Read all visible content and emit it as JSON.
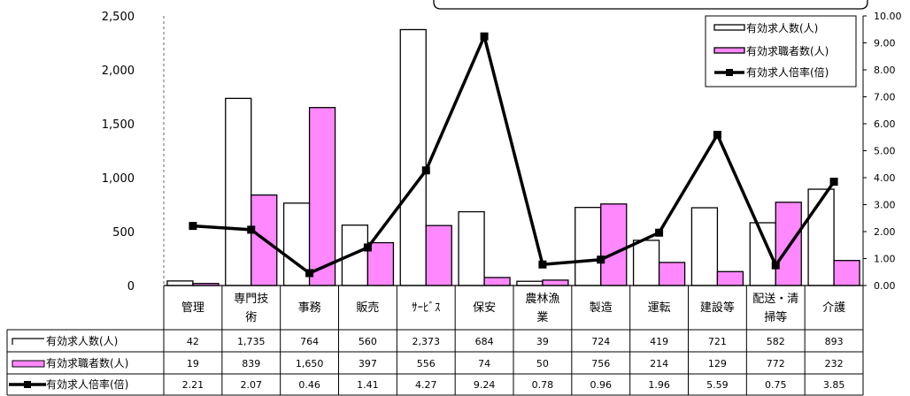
{
  "chart_data": {
    "type": "bar",
    "categories": [
      [
        "管理"
      ],
      [
        "専門技",
        "術"
      ],
      [
        "事務"
      ],
      [
        "販売"
      ],
      [
        "ｻｰﾋﾞｽ"
      ],
      [
        "保安"
      ],
      [
        "農林漁",
        "業"
      ],
      [
        "製造"
      ],
      [
        "運転"
      ],
      [
        "建設等"
      ],
      [
        "配送・清",
        "掃等"
      ],
      [
        "介護"
      ]
    ],
    "series": [
      {
        "name": "有効求人数(人)",
        "kind": "bar",
        "axis": "left",
        "fill": "#ffffff",
        "values": [
          42,
          1735,
          764,
          560,
          2373,
          684,
          39,
          724,
          419,
          721,
          582,
          893
        ],
        "labels": [
          "42",
          "1,735",
          "764",
          "560",
          "2,373",
          "684",
          "39",
          "724",
          "419",
          "721",
          "582",
          "893"
        ]
      },
      {
        "name": "有効求職者数(人)",
        "kind": "bar",
        "axis": "left",
        "fill": "#ff88ff",
        "values": [
          19,
          839,
          1650,
          397,
          556,
          74,
          50,
          756,
          214,
          129,
          772,
          232
        ],
        "labels": [
          "19",
          "839",
          "1,650",
          "397",
          "556",
          "74",
          "50",
          "756",
          "214",
          "129",
          "772",
          "232"
        ]
      },
      {
        "name": "有効求人倍率(倍)",
        "kind": "line",
        "axis": "right",
        "color": "#000000",
        "values": [
          2.21,
          2.07,
          0.46,
          1.41,
          4.27,
          9.24,
          0.78,
          0.96,
          1.96,
          5.59,
          0.75,
          3.85
        ],
        "labels": [
          "2.21",
          "2.07",
          "0.46",
          "1.41",
          "4.27",
          "9.24",
          "0.78",
          "0.96",
          "1.96",
          "5.59",
          "0.75",
          "3.85"
        ]
      }
    ],
    "y_left": {
      "ylim": [
        0,
        2500
      ],
      "ticks": [
        0,
        500,
        1000,
        1500,
        2000,
        2500
      ],
      "tick_labels": [
        "0",
        "500",
        "1,000",
        "1,500",
        "2,000",
        "2,500"
      ]
    },
    "y_right": {
      "ylim": [
        0,
        10
      ],
      "ticks": [
        0,
        1,
        2,
        3,
        4,
        5,
        6,
        7,
        8,
        9,
        10
      ],
      "tick_labels": [
        "0.00",
        "1.00",
        "2.00",
        "3.00",
        "4.00",
        "5.00",
        "6.00",
        "7.00",
        "8.00",
        "9.00",
        "10.00"
      ]
    },
    "legend": {
      "position": "top-right"
    },
    "table": {
      "shown": true
    }
  }
}
